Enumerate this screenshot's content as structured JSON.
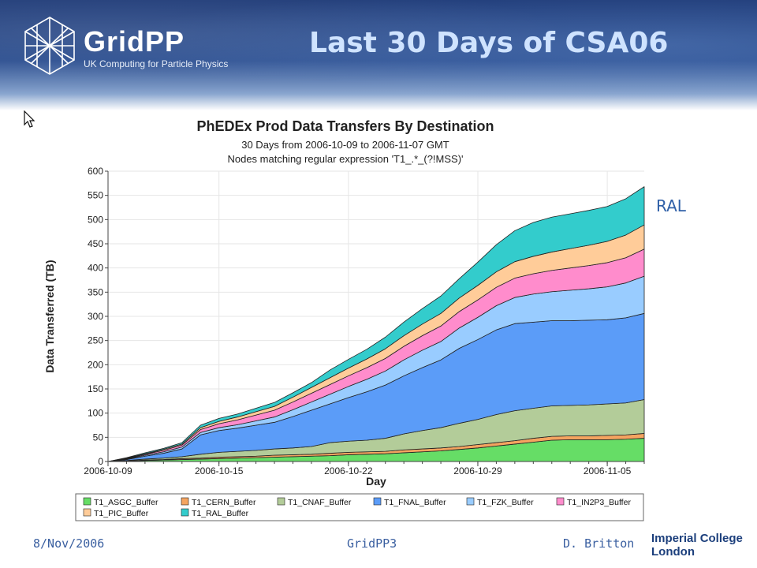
{
  "slide": {
    "title": "Last 30 Days of CSA06",
    "logo_name": "GridPP",
    "logo_subtitle": "UK Computing for Particle Physics",
    "side_label": "RAL",
    "footer_date": "8/Nov/2006",
    "footer_event": "GridPP3",
    "footer_author": "D. Britton",
    "institution_line1": "Imperial College",
    "institution_line2": "London",
    "banner_color": "#1f3b78"
  },
  "chart_data": {
    "type": "area",
    "stacked": true,
    "title": "PhEDEx Prod Data Transfers By Destination",
    "subtitle": "30 Days from 2006-10-09 to 2006-11-07 GMT",
    "subtitle2": "Nodes matching regular expression 'T1_.*_(?!MSS)'",
    "xlabel": "Day",
    "ylabel": "Data Transferred (TB)",
    "ylim": [
      0,
      600
    ],
    "yticks": [
      "0",
      "50",
      "100",
      "150",
      "200",
      "250",
      "300",
      "350",
      "400",
      "450",
      "500",
      "550",
      "600"
    ],
    "xtick_labels": [
      "2006-10-09",
      "2006-10-15",
      "2006-10-22",
      "2006-10-29",
      "2006-11-05"
    ],
    "xtick_day_index": [
      0,
      6,
      13,
      20,
      27
    ],
    "x_days": 30,
    "grid": true,
    "legend_position": "bottom",
    "series": [
      {
        "name": "T1_ASGC_Buffer",
        "color": "#66dd66",
        "values": [
          0,
          1,
          2,
          3,
          4,
          5,
          6,
          7,
          8,
          9,
          10,
          11,
          12,
          14,
          15,
          16,
          18,
          20,
          22,
          25,
          28,
          32,
          36,
          40,
          44,
          45,
          45,
          45,
          46,
          48
        ]
      },
      {
        "name": "T1_CERN_Buffer",
        "color": "#f4a460",
        "values": [
          0,
          0,
          1,
          1,
          2,
          2,
          3,
          3,
          3,
          4,
          4,
          4,
          5,
          5,
          5,
          5,
          6,
          6,
          6,
          6,
          7,
          7,
          7,
          8,
          8,
          8,
          8,
          9,
          9,
          10
        ]
      },
      {
        "name": "T1_CNAF_Buffer",
        "color": "#b3cc99",
        "values": [
          0,
          1,
          2,
          3,
          4,
          8,
          10,
          11,
          12,
          13,
          14,
          16,
          22,
          23,
          24,
          27,
          33,
          38,
          42,
          48,
          52,
          58,
          62,
          62,
          63,
          63,
          64,
          65,
          66,
          70
        ]
      },
      {
        "name": "T1_FNAL_Buffer",
        "color": "#5b9cf8",
        "values": [
          0,
          2,
          6,
          10,
          16,
          40,
          45,
          48,
          52,
          55,
          65,
          75,
          80,
          90,
          100,
          110,
          120,
          130,
          140,
          155,
          165,
          175,
          180,
          178,
          176,
          175,
          175,
          174,
          176,
          178
        ]
      },
      {
        "name": "T1_FZK_Buffer",
        "color": "#99ccff",
        "values": [
          0,
          1,
          2,
          3,
          4,
          5,
          6,
          7,
          9,
          11,
          14,
          17,
          20,
          23,
          26,
          29,
          33,
          36,
          38,
          42,
          46,
          50,
          54,
          58,
          60,
          63,
          65,
          68,
          72,
          77
        ]
      },
      {
        "name": "T1_IN2P3_Buffer",
        "color": "#ff8ccc",
        "values": [
          0,
          1,
          2,
          3,
          4,
          6,
          8,
          10,
          12,
          14,
          16,
          18,
          20,
          22,
          24,
          26,
          28,
          30,
          32,
          34,
          36,
          38,
          40,
          42,
          44,
          46,
          48,
          50,
          52,
          56
        ]
      },
      {
        "name": "T1_PIC_Buffer",
        "color": "#ffcc99",
        "values": [
          0,
          1,
          1,
          2,
          2,
          4,
          5,
          6,
          7,
          8,
          10,
          12,
          14,
          16,
          18,
          20,
          22,
          24,
          26,
          28,
          30,
          32,
          34,
          36,
          38,
          40,
          42,
          44,
          47,
          50
        ]
      },
      {
        "name": "T1_RAL_Buffer",
        "color": "#33cccc",
        "values": [
          0,
          1,
          2,
          2,
          3,
          5,
          6,
          6,
          7,
          8,
          9,
          10,
          16,
          18,
          20,
          24,
          28,
          32,
          36,
          40,
          48,
          56,
          64,
          70,
          72,
          72,
          72,
          72,
          75,
          79
        ]
      }
    ]
  }
}
